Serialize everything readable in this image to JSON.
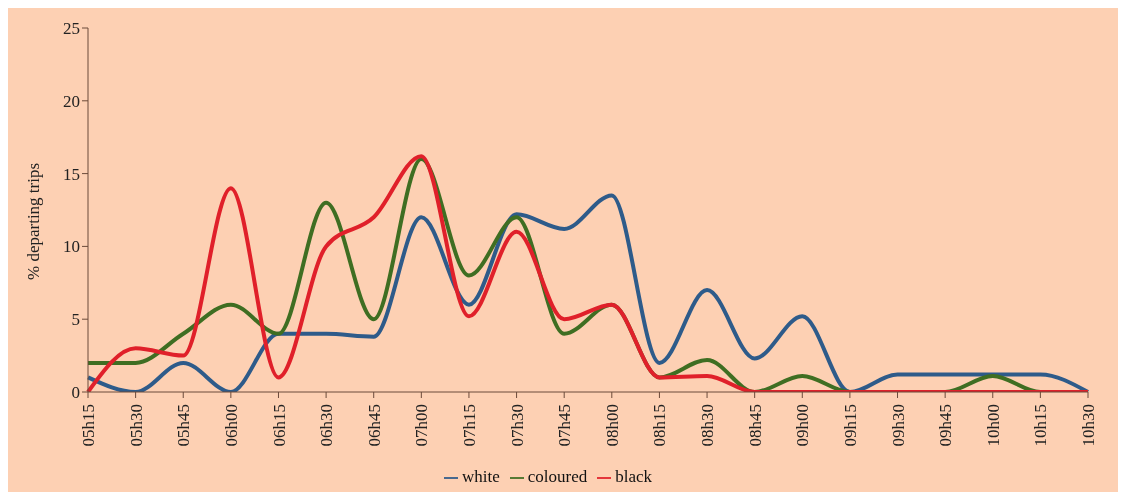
{
  "chart_data": {
    "type": "line",
    "ylabel": "% departing trips",
    "categories": [
      "05h15",
      "05h30",
      "05h45",
      "06h00",
      "06h15",
      "06h30",
      "06h45",
      "07h00",
      "07h15",
      "07h30",
      "07h45",
      "08h00",
      "08h15",
      "08h30",
      "08h45",
      "09h00",
      "09h15",
      "09h30",
      "09h45",
      "10h00",
      "10h15",
      "10h30"
    ],
    "series": [
      {
        "name": "white",
        "color": "#2e5b8a",
        "values": [
          1,
          0,
          2,
          0,
          4,
          4,
          3.8,
          12,
          6,
          12.2,
          11.2,
          13.5,
          2,
          7,
          2.3,
          5.2,
          0,
          1.2,
          1.2,
          1.2,
          1.2,
          0
        ]
      },
      {
        "name": "coloured",
        "color": "#3f6e22",
        "values": [
          2,
          2,
          4,
          6,
          4,
          13,
          5,
          16,
          8,
          12,
          4,
          6,
          1,
          2.2,
          0,
          1.1,
          0,
          0,
          0,
          1.1,
          0,
          0
        ]
      },
      {
        "name": "black",
        "color": "#e0202a",
        "values": [
          0,
          3,
          2.5,
          14,
          1,
          10,
          12,
          16.2,
          5.2,
          11,
          5,
          6,
          1,
          1.1,
          0,
          0,
          0,
          0,
          0,
          0,
          0,
          0
        ]
      }
    ],
    "ylim": [
      0,
      25
    ],
    "yticks": [
      0,
      5,
      10,
      15,
      20,
      25
    ],
    "grid": false,
    "legend": "bottom",
    "marker": "none",
    "line_style": "solid"
  }
}
